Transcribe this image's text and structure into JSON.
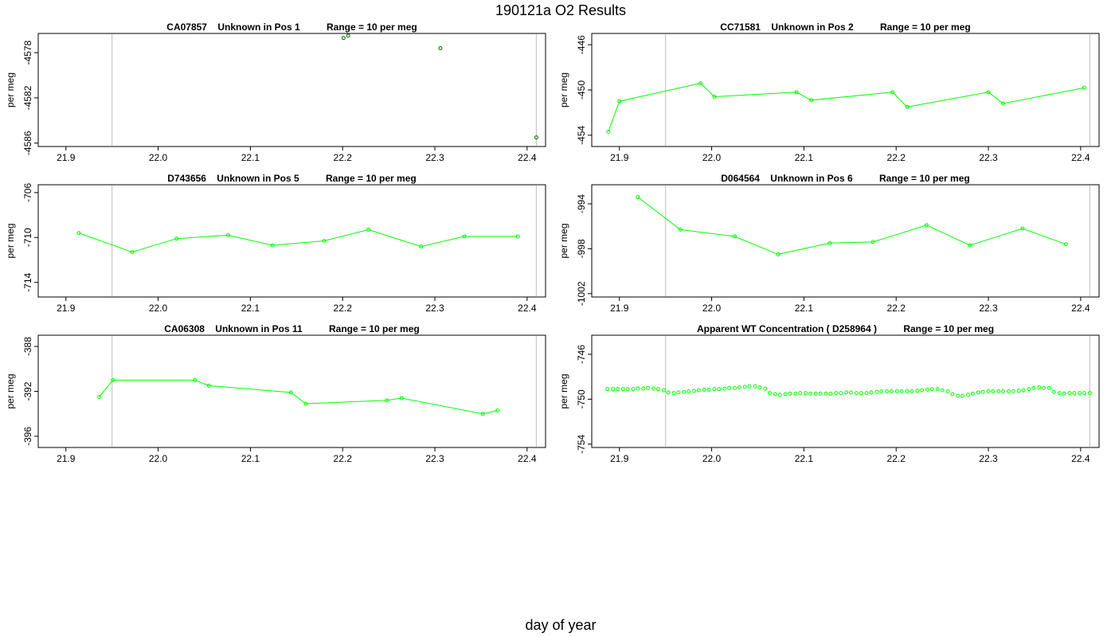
{
  "figure": {
    "title": "190121a  O2 Results",
    "xlabel": "day of year"
  },
  "chart_data": [
    {
      "type": "scatter",
      "title": "CA07857    Unknown in Pos 1          Range = 10 per meg",
      "ylabel": "per meg",
      "xlim": [
        21.87,
        22.42
      ],
      "ylim": [
        -4586.3,
        -4576.3
      ],
      "xticks": [
        21.9,
        22.0,
        22.1,
        22.2,
        22.3,
        22.4
      ],
      "yticks": [
        -4578,
        -4582,
        -4586
      ],
      "vlines": [
        21.95,
        22.41
      ],
      "connect": false,
      "marker_color": "#006400",
      "line_color": "#00ff00",
      "x": [
        22.201,
        22.206,
        22.306,
        22.41
      ],
      "y": [
        -4576.7,
        -4576.5,
        -4577.6,
        -4585.5
      ]
    },
    {
      "type": "line",
      "title": "CC71581    Unknown in Pos 2          Range = 10 per meg",
      "ylabel": "per meg",
      "xlim": [
        21.87,
        22.42
      ],
      "ylim": [
        -455.0,
        -445.0
      ],
      "xticks": [
        21.9,
        22.0,
        22.1,
        22.2,
        22.3,
        22.4
      ],
      "yticks": [
        -446,
        -450,
        -454
      ],
      "vlines": [
        21.95,
        22.41
      ],
      "connect": true,
      "marker_color": "#00ff00",
      "line_color": "#00ff00",
      "x": [
        21.888,
        21.9,
        21.988,
        22.003,
        22.092,
        22.108,
        22.196,
        22.212,
        22.3,
        22.316,
        22.404
      ],
      "y": [
        -453.7,
        -451.0,
        -449.4,
        -450.6,
        -450.2,
        -450.9,
        -450.2,
        -451.5,
        -450.2,
        -451.2,
        -449.8
      ]
    },
    {
      "type": "line",
      "title": "D743656    Unknown in Pos 5          Range = 10 per meg",
      "ylabel": "per meg",
      "xlim": [
        21.87,
        22.42
      ],
      "ylim": [
        -715.3,
        -705.3
      ],
      "xticks": [
        21.9,
        22.0,
        22.1,
        22.2,
        22.3,
        22.4
      ],
      "yticks": [
        -706,
        -710,
        -714
      ],
      "vlines": [
        21.95,
        22.41
      ],
      "connect": true,
      "marker_color": "#00ff00",
      "line_color": "#00ff00",
      "x": [
        21.914,
        21.972,
        22.02,
        22.076,
        22.124,
        22.18,
        22.228,
        22.285,
        22.332,
        22.39
      ],
      "y": [
        -709.6,
        -711.3,
        -710.1,
        -709.8,
        -710.7,
        -710.3,
        -709.3,
        -710.8,
        -709.9,
        -709.9
      ]
    },
    {
      "type": "line",
      "title": "D064564    Unknown in Pos 6          Range = 10 per meg",
      "ylabel": "per meg",
      "xlim": [
        21.87,
        22.42
      ],
      "ylim": [
        -1002.3,
        -992.3
      ],
      "xticks": [
        21.9,
        22.0,
        22.1,
        22.2,
        22.3,
        22.4
      ],
      "yticks": [
        -994,
        -998,
        -1002
      ],
      "vlines": [
        21.95,
        22.41
      ],
      "connect": true,
      "marker_color": "#00ff00",
      "line_color": "#00ff00",
      "x": [
        21.92,
        21.966,
        22.025,
        22.072,
        22.128,
        22.175,
        22.233,
        22.28,
        22.337,
        22.384
      ],
      "y": [
        -993.4,
        -996.3,
        -996.9,
        -998.5,
        -997.5,
        -997.4,
        -995.9,
        -997.7,
        -996.2,
        -997.6
      ]
    },
    {
      "type": "line",
      "title": "CA06308    Unknown in Pos 11          Range = 10 per meg",
      "ylabel": "per meg",
      "xlim": [
        21.87,
        22.42
      ],
      "ylim": [
        -397.0,
        -387.0
      ],
      "xticks": [
        21.9,
        22.0,
        22.1,
        22.2,
        22.3,
        22.4
      ],
      "yticks": [
        -388,
        -392,
        -396
      ],
      "vlines": [
        21.95,
        22.41
      ],
      "connect": true,
      "marker_color": "#00ff00",
      "line_color": "#00ff00",
      "x": [
        21.936,
        21.951,
        22.04,
        22.055,
        22.144,
        22.16,
        22.248,
        22.264,
        22.352,
        22.368
      ],
      "y": [
        -392.5,
        -391.0,
        -391.0,
        -391.5,
        -392.1,
        -393.1,
        -392.8,
        -392.6,
        -394.0,
        -393.7
      ]
    },
    {
      "type": "scatter",
      "title": "Apparent WT Concentration ( D258964 )          Range = 10 per meg",
      "ylabel": "per meg",
      "xlim": [
        21.87,
        22.42
      ],
      "ylim": [
        -754.3,
        -744.3
      ],
      "xticks": [
        21.9,
        22.0,
        22.1,
        22.2,
        22.3,
        22.4
      ],
      "yticks": [
        -746,
        -750,
        -754
      ],
      "vlines": [
        21.95,
        22.41
      ],
      "connect": false,
      "marker_color": "#00ff00",
      "line_color": "#00ff00",
      "x": [
        21.887,
        21.893,
        21.898,
        21.904,
        21.909,
        21.915,
        21.92,
        21.926,
        21.931,
        21.937,
        21.942,
        21.948,
        21.953,
        21.959,
        21.964,
        21.97,
        21.975,
        21.981,
        21.986,
        21.992,
        21.997,
        22.003,
        22.008,
        22.014,
        22.019,
        22.025,
        22.03,
        22.036,
        22.041,
        22.047,
        22.052,
        22.058,
        22.063,
        22.069,
        22.074,
        22.08,
        22.085,
        22.091,
        22.096,
        22.102,
        22.107,
        22.113,
        22.118,
        22.124,
        22.129,
        22.135,
        22.14,
        22.146,
        22.151,
        22.157,
        22.162,
        22.168,
        22.173,
        22.179,
        22.184,
        22.19,
        22.195,
        22.201,
        22.206,
        22.212,
        22.217,
        22.223,
        22.228,
        22.234,
        22.239,
        22.245,
        22.25,
        22.256,
        22.261,
        22.267,
        22.272,
        22.278,
        22.283,
        22.289,
        22.294,
        22.3,
        22.305,
        22.311,
        22.316,
        22.322,
        22.327,
        22.333,
        22.338,
        22.344,
        22.349,
        22.355,
        22.36,
        22.366,
        22.371,
        22.377,
        22.382,
        22.388,
        22.393,
        22.399,
        22.404,
        22.41
      ],
      "y": [
        -749.1,
        -749.1,
        -749.1,
        -749.1,
        -749.1,
        -749.1,
        -749.05,
        -749.05,
        -749.0,
        -749.05,
        -749.1,
        -749.2,
        -749.4,
        -749.45,
        -749.4,
        -749.35,
        -749.3,
        -749.25,
        -749.2,
        -749.15,
        -749.15,
        -749.1,
        -749.1,
        -749.05,
        -749.0,
        -749.0,
        -748.95,
        -748.9,
        -748.85,
        -748.85,
        -748.95,
        -749.05,
        -749.45,
        -749.55,
        -749.6,
        -749.55,
        -749.5,
        -749.5,
        -749.45,
        -749.45,
        -749.5,
        -749.5,
        -749.5,
        -749.5,
        -749.5,
        -749.45,
        -749.45,
        -749.4,
        -749.4,
        -749.45,
        -749.45,
        -749.45,
        -749.4,
        -749.35,
        -749.3,
        -749.3,
        -749.3,
        -749.3,
        -749.3,
        -749.3,
        -749.3,
        -749.25,
        -749.2,
        -749.15,
        -749.1,
        -749.1,
        -749.2,
        -749.3,
        -749.55,
        -749.7,
        -749.7,
        -749.6,
        -749.5,
        -749.4,
        -749.35,
        -749.3,
        -749.3,
        -749.3,
        -749.3,
        -749.3,
        -749.3,
        -749.25,
        -749.2,
        -749.1,
        -749.0,
        -748.95,
        -749.0,
        -749.0,
        -749.35,
        -749.45,
        -749.5,
        -749.45,
        -749.45,
        -749.45,
        -749.45,
        -749.45
      ]
    }
  ]
}
